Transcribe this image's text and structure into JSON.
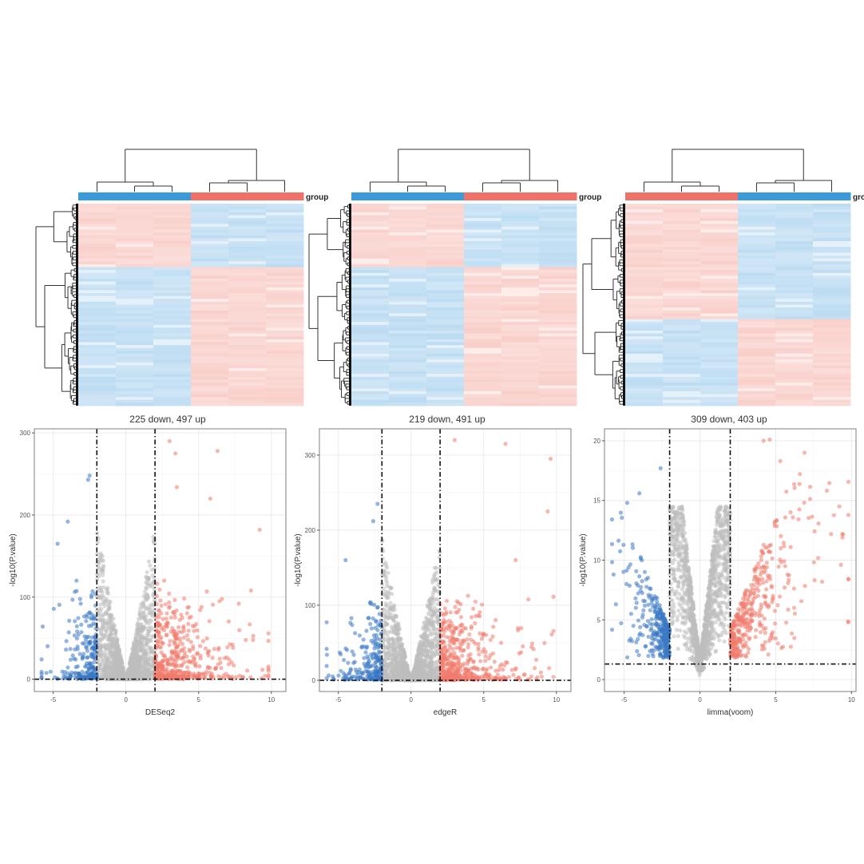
{
  "colors": {
    "up": "#f07b6e",
    "down": "#3a78c5",
    "ns": "#bdbdbd",
    "heat_high": "#f9cfca",
    "heat_low": "#bddcf2",
    "group_a": "#3b9ad9",
    "group_b": "#f07167"
  },
  "annotation_label": "group",
  "chart_data": [
    {
      "type": "heatmap",
      "columns_group": [
        "a",
        "a",
        "a",
        "b",
        "b",
        "b"
      ],
      "row_split_fraction": 0.32,
      "left_block_top": "high",
      "row_dendrogram": true,
      "column_dendrogram": true
    },
    {
      "type": "heatmap",
      "columns_group": [
        "a",
        "a",
        "a",
        "b",
        "b",
        "b"
      ],
      "row_split_fraction": 0.31,
      "left_block_top": "high",
      "row_dendrogram": true,
      "column_dendrogram": true
    },
    {
      "type": "heatmap",
      "columns_group": [
        "b",
        "b",
        "b",
        "a",
        "a",
        "a"
      ],
      "row_split_fraction": 0.57,
      "left_block_top": "high",
      "row_dendrogram": true,
      "column_dendrogram": true
    },
    {
      "type": "scatter",
      "title": "225 down, 497 up",
      "xlabel": "DESeq2",
      "ylabel": "-log10(P.value)",
      "xlim": [
        -6.3,
        11
      ],
      "ylim": [
        -15,
        305
      ],
      "xticks": [
        "-5",
        "0",
        "5",
        "10"
      ],
      "yticks": [
        "0",
        "100",
        "200",
        "300"
      ],
      "vlines": [
        -2,
        2
      ],
      "hline": 0,
      "down_count": 225,
      "up_count": 497,
      "grid": true,
      "ns_peak_at_fc2": 190,
      "notable_points": [
        [
          -2.5,
          248
        ],
        [
          -2.6,
          243
        ],
        [
          -4,
          192
        ],
        [
          -4.7,
          165
        ],
        [
          -3.4,
          120
        ],
        [
          3,
          290
        ],
        [
          3.4,
          275
        ],
        [
          6.3,
          278
        ],
        [
          5.8,
          220
        ],
        [
          9.2,
          182
        ],
        [
          8.6,
          108
        ],
        [
          3.5,
          234
        ]
      ]
    },
    {
      "type": "scatter",
      "title": "219 down, 491 up",
      "xlabel": "edgeR",
      "ylabel": "-log10(P.value)",
      "xlim": [
        -6.3,
        11
      ],
      "ylim": [
        -15,
        335
      ],
      "xticks": [
        "-5",
        "0",
        "5",
        "10"
      ],
      "yticks": [
        "0",
        "100",
        "200",
        "300"
      ],
      "vlines": [
        -2,
        2
      ],
      "hline": 0,
      "down_count": 219,
      "up_count": 491,
      "grid": true,
      "ns_peak_at_fc2": 190,
      "notable_points": [
        [
          -2.3,
          235
        ],
        [
          -2.6,
          212
        ],
        [
          -4.5,
          160
        ],
        [
          3,
          320
        ],
        [
          6.5,
          315
        ],
        [
          9.6,
          295
        ],
        [
          9.4,
          225
        ],
        [
          7.2,
          160
        ]
      ]
    },
    {
      "type": "scatter",
      "title": "309 down, 403 up",
      "xlabel": "limma(voom)",
      "ylabel": "-log10(P.value)",
      "xlim": [
        -6.3,
        10.3
      ],
      "ylim": [
        -1,
        21
      ],
      "xticks": [
        "-5",
        "0",
        "5",
        "10"
      ],
      "yticks": [
        "0",
        "5",
        "10",
        "15",
        "20"
      ],
      "vlines": [
        -2,
        2
      ],
      "hline": 1.3,
      "down_count": 309,
      "up_count": 403,
      "grid": true,
      "ns_peak_at_fc2": 14.5,
      "notable_points": [
        [
          -2.6,
          17.7
        ],
        [
          -4,
          15.6
        ],
        [
          -4.8,
          14.8
        ],
        [
          -5.7,
          8.8
        ],
        [
          4.2,
          20
        ],
        [
          4.6,
          20.1
        ],
        [
          6.9,
          19
        ],
        [
          9.2,
          14.5
        ],
        [
          9.4,
          12.2
        ],
        [
          5.3,
          18.3
        ]
      ]
    }
  ]
}
